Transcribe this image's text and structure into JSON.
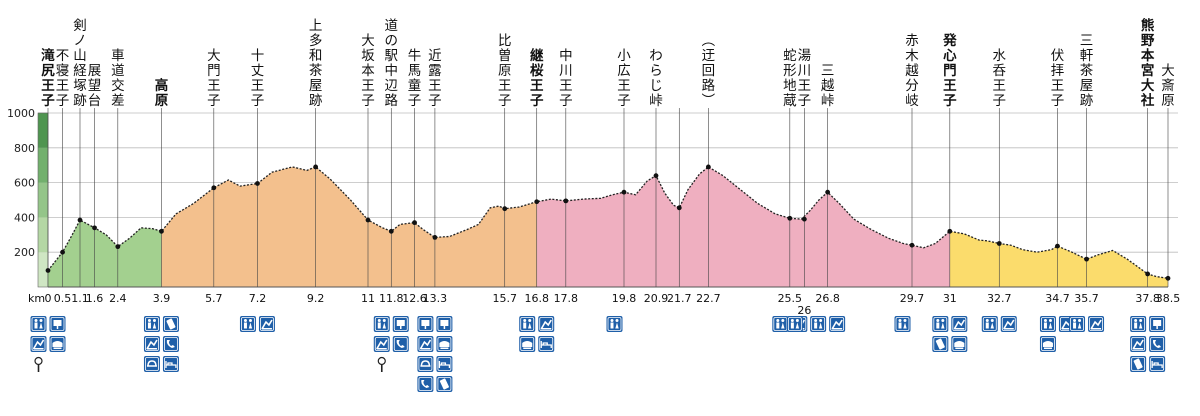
{
  "chart_data": {
    "type": "area",
    "title": "",
    "xlabel": "km",
    "ylabel": "",
    "y_unit": "",
    "ylim": [
      0,
      1000
    ],
    "y_ticks": [
      200,
      400,
      600,
      800,
      1000
    ],
    "grid": true,
    "legend": "none",
    "sections": [
      {
        "from_km": 0,
        "to_km": 3.9,
        "color": "#a3d08f"
      },
      {
        "from_km": 3.9,
        "to_km": 16.8,
        "color": "#f3c08d"
      },
      {
        "from_km": 16.8,
        "to_km": 31,
        "color": "#efafc0"
      },
      {
        "from_km": 31,
        "to_km": 38.5,
        "color": "#fbdc6c"
      }
    ],
    "profile": [
      [
        0,
        95
      ],
      [
        0.5,
        200
      ],
      [
        0.8,
        290
      ],
      [
        1.1,
        385
      ],
      [
        1.6,
        340
      ],
      [
        2.0,
        300
      ],
      [
        2.4,
        232
      ],
      [
        2.8,
        280
      ],
      [
        3.2,
        340
      ],
      [
        3.6,
        335
      ],
      [
        3.9,
        320
      ],
      [
        4.4,
        420
      ],
      [
        5.0,
        480
      ],
      [
        5.7,
        570
      ],
      [
        6.2,
        615
      ],
      [
        6.6,
        580
      ],
      [
        7.2,
        595
      ],
      [
        7.7,
        660
      ],
      [
        8.4,
        690
      ],
      [
        8.9,
        670
      ],
      [
        9.2,
        690
      ],
      [
        9.7,
        620
      ],
      [
        10.4,
        500
      ],
      [
        11,
        385
      ],
      [
        11.5,
        340
      ],
      [
        11.8,
        320
      ],
      [
        12.1,
        360
      ],
      [
        12.6,
        370
      ],
      [
        12.9,
        330
      ],
      [
        13.3,
        285
      ],
      [
        13.8,
        290
      ],
      [
        14.4,
        330
      ],
      [
        14.8,
        360
      ],
      [
        15.2,
        455
      ],
      [
        15.5,
        465
      ],
      [
        15.7,
        450
      ],
      [
        16.2,
        460
      ],
      [
        16.8,
        490
      ],
      [
        17.3,
        505
      ],
      [
        17.8,
        495
      ],
      [
        18.4,
        505
      ],
      [
        19.0,
        510
      ],
      [
        19.4,
        530
      ],
      [
        19.8,
        545
      ],
      [
        20.2,
        530
      ],
      [
        20.6,
        610
      ],
      [
        20.9,
        640
      ],
      [
        21.2,
        540
      ],
      [
        21.5,
        470
      ],
      [
        21.7,
        455
      ],
      [
        22.0,
        560
      ],
      [
        22.4,
        650
      ],
      [
        22.7,
        690
      ],
      [
        23.2,
        640
      ],
      [
        23.8,
        560
      ],
      [
        24.4,
        480
      ],
      [
        25.0,
        420
      ],
      [
        25.5,
        395
      ],
      [
        25.9,
        390
      ],
      [
        26.2,
        440
      ],
      [
        26.5,
        500
      ],
      [
        26.8,
        545
      ],
      [
        27.2,
        480
      ],
      [
        27.7,
        390
      ],
      [
        28.3,
        330
      ],
      [
        28.9,
        280
      ],
      [
        29.4,
        250
      ],
      [
        29.7,
        240
      ],
      [
        30.1,
        225
      ],
      [
        30.5,
        250
      ],
      [
        31,
        320
      ],
      [
        31.5,
        305
      ],
      [
        32.0,
        270
      ],
      [
        32.3,
        265
      ],
      [
        32.7,
        250
      ],
      [
        33.1,
        240
      ],
      [
        33.5,
        215
      ],
      [
        34.0,
        200
      ],
      [
        34.5,
        215
      ],
      [
        34.7,
        235
      ],
      [
        35.2,
        200
      ],
      [
        35.7,
        160
      ],
      [
        36.1,
        185
      ],
      [
        36.6,
        210
      ],
      [
        37.1,
        160
      ],
      [
        37.8,
        75
      ],
      [
        38.1,
        60
      ],
      [
        38.5,
        50
      ]
    ],
    "x_ticks": [
      {
        "km": 0,
        "label": "0"
      },
      {
        "km": 0.5,
        "label": "0.5"
      },
      {
        "km": 1.1,
        "label": "1.1"
      },
      {
        "km": 1.6,
        "label": "1.6"
      },
      {
        "km": 2.4,
        "label": "2.4"
      },
      {
        "km": 3.9,
        "label": "3.9"
      },
      {
        "km": 5.7,
        "label": "5.7"
      },
      {
        "km": 7.2,
        "label": "7.2"
      },
      {
        "km": 9.2,
        "label": "9.2"
      },
      {
        "km": 11,
        "label": "11"
      },
      {
        "km": 11.8,
        "label": "11.8"
      },
      {
        "km": 12.6,
        "label": "12.6"
      },
      {
        "km": 13.3,
        "label": "13.3"
      },
      {
        "km": 15.7,
        "label": "15.7"
      },
      {
        "km": 16.8,
        "label": "16.8"
      },
      {
        "km": 17.8,
        "label": "17.8"
      },
      {
        "km": 19.8,
        "label": "19.8"
      },
      {
        "km": 20.9,
        "label": "20.9"
      },
      {
        "km": 21.7,
        "label": "21.7"
      },
      {
        "km": 22.7,
        "label": "22.7"
      },
      {
        "km": 25.5,
        "label": "25.5"
      },
      {
        "km": 26,
        "label": "26"
      },
      {
        "km": 26.8,
        "label": "26.8"
      },
      {
        "km": 29.7,
        "label": "29.7"
      },
      {
        "km": 31,
        "label": "31"
      },
      {
        "km": 32.7,
        "label": "32.7"
      },
      {
        "km": 34.7,
        "label": "34.7"
      },
      {
        "km": 35.7,
        "label": "35.7"
      },
      {
        "km": 37.8,
        "label": "37.8"
      },
      {
        "km": 38.5,
        "label": "38.5"
      }
    ],
    "points": [
      {
        "km": 0,
        "elev": 95,
        "label": "滝尻王子",
        "bold": true,
        "icons": [
          "toilet",
          "info",
          "parking",
          "bus",
          "vending"
        ]
      },
      {
        "km": 0.5,
        "elev": 200,
        "label": "不寝王子",
        "icons": []
      },
      {
        "km": 1.1,
        "elev": 385,
        "label": "剣ノ山経塚跡",
        "icons": []
      },
      {
        "km": 1.6,
        "elev": 340,
        "label": "展望台",
        "icons": []
      },
      {
        "km": 2.4,
        "elev": 232,
        "label": "車道交差",
        "icons": []
      },
      {
        "km": 3.9,
        "elev": 320,
        "label": "高原",
        "bold": true,
        "icons": [
          "toilet",
          "vending",
          "parking",
          "phone",
          "restaurant",
          "lodging"
        ]
      },
      {
        "km": 5.7,
        "elev": 570,
        "label": "大門王子",
        "icons": []
      },
      {
        "km": 7.2,
        "elev": 595,
        "label": "十丈王子",
        "icons": [
          "toilet",
          "parking"
        ]
      },
      {
        "km": 9.2,
        "elev": 690,
        "label": "上多和茶屋跡",
        "icons": []
      },
      {
        "km": 11,
        "elev": 385,
        "label": "大坂本王子",
        "icons": []
      },
      {
        "km": 11.8,
        "elev": 320,
        "label": "道の駅中辺路",
        "icons": [
          "toilet",
          "info",
          "parking",
          "phone",
          "vending"
        ]
      },
      {
        "km": 12.6,
        "elev": 370,
        "label": "牛馬童子",
        "icons": []
      },
      {
        "km": 13.3,
        "elev": 285,
        "label": "近露王子",
        "icons": [
          "info",
          "info",
          "parking",
          "bus",
          "restaurant",
          "lodging",
          "phone",
          "vending"
        ]
      },
      {
        "km": 15.7,
        "elev": 450,
        "label": "比曽原王子",
        "icons": []
      },
      {
        "km": 16.8,
        "elev": 490,
        "label": "継桜王子",
        "bold": true,
        "icons": [
          "toilet",
          "parking",
          "bus",
          "lodging"
        ]
      },
      {
        "km": 17.8,
        "elev": 495,
        "label": "中川王子",
        "icons": []
      },
      {
        "km": 19.8,
        "elev": 545,
        "label": "小広王子",
        "icons": [
          "toilet"
        ]
      },
      {
        "km": 20.9,
        "elev": 640,
        "label": "わらじ峠",
        "icons": []
      },
      {
        "km": 21.7,
        "elev": 455,
        "label": "",
        "icons": []
      },
      {
        "km": 22.7,
        "elev": 690,
        "label": "(迂回路)",
        "icons": []
      },
      {
        "km": 25.5,
        "elev": 395,
        "label": "蛇形地蔵",
        "icons": [
          "toilet",
          "parking"
        ]
      },
      {
        "km": 26,
        "elev": 390,
        "label": "湯川王子",
        "icons": [
          "toilet"
        ]
      },
      {
        "km": 26.8,
        "elev": 545,
        "label": "三越峠",
        "icons": [
          "toilet",
          "parking"
        ]
      },
      {
        "km": 29.7,
        "elev": 240,
        "label": "赤木越分岐",
        "icons": [
          "toilet"
        ]
      },
      {
        "km": 31,
        "elev": 320,
        "label": "発心門王子",
        "bold": true,
        "icons": [
          "toilet",
          "parking",
          "vending",
          "bus"
        ]
      },
      {
        "km": 32.7,
        "elev": 250,
        "label": "水呑王子",
        "icons": [
          "toilet",
          "parking"
        ]
      },
      {
        "km": 34.7,
        "elev": 235,
        "label": "伏拝王子",
        "icons": [
          "toilet",
          "parking",
          "bus"
        ]
      },
      {
        "km": 35.7,
        "elev": 160,
        "label": "三軒茶屋跡",
        "icons": [
          "toilet",
          "parking"
        ]
      },
      {
        "km": 37.8,
        "elev": 75,
        "label": "熊野本宮大社",
        "bold": true,
        "icons": [
          "toilet",
          "info",
          "parking",
          "phone",
          "vending",
          "lodging"
        ]
      },
      {
        "km": 38.5,
        "elev": 50,
        "label": "大斎原",
        "icons": []
      }
    ],
    "sub_label_26": "26"
  }
}
